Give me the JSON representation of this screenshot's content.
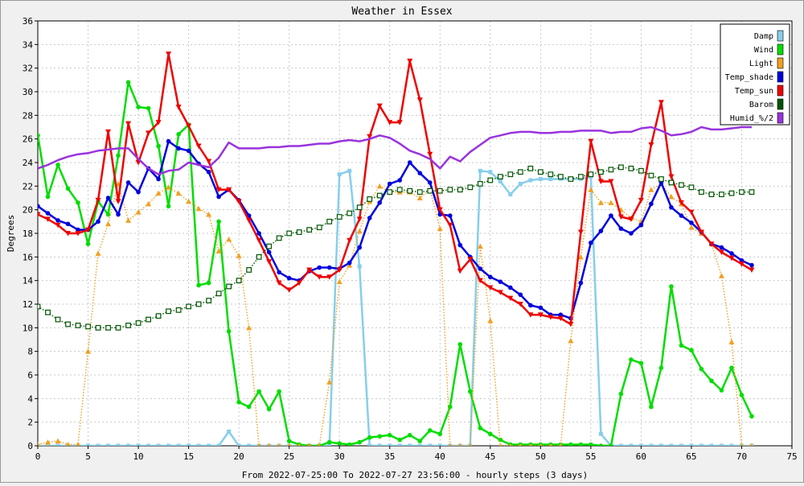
{
  "chart_data": {
    "type": "line",
    "title": "Weather in Essex",
    "xlabel": "From 2022-07-25:00 To 2022-07-27 23:56:00 - hourly steps (3 days)",
    "ylabel": "Degrees",
    "xlim": [
      0,
      75
    ],
    "ylim": [
      0,
      36
    ],
    "xticks": [
      0,
      5,
      10,
      15,
      20,
      25,
      30,
      35,
      40,
      45,
      50,
      55,
      60,
      65,
      70,
      75
    ],
    "yticks": [
      0,
      2,
      4,
      6,
      8,
      10,
      12,
      14,
      16,
      18,
      20,
      22,
      24,
      26,
      28,
      30,
      32,
      34,
      36
    ],
    "grid": true,
    "legend_position": "top-right",
    "x": [
      0,
      1,
      2,
      3,
      4,
      5,
      6,
      7,
      8,
      9,
      10,
      11,
      12,
      13,
      14,
      15,
      16,
      17,
      18,
      19,
      20,
      21,
      22,
      23,
      24,
      25,
      26,
      27,
      28,
      29,
      30,
      31,
      32,
      33,
      34,
      35,
      36,
      37,
      38,
      39,
      40,
      41,
      42,
      43,
      44,
      45,
      46,
      47,
      48,
      49,
      50,
      51,
      52,
      53,
      54,
      55,
      56,
      57,
      58,
      59,
      60,
      61,
      62,
      63,
      64,
      65,
      66,
      67,
      68,
      69,
      70,
      71
    ],
    "series": [
      {
        "name": "Damp",
        "color": "#87ceeb",
        "style": "solid",
        "marker": "square",
        "values": [
          0,
          0,
          0,
          0,
          0,
          0,
          0,
          0,
          0,
          0,
          0,
          0,
          0,
          0,
          0,
          0,
          0,
          0,
          0,
          1.2,
          0,
          0,
          0,
          0,
          0,
          0,
          0,
          0,
          0,
          0,
          23.0,
          23.3,
          15.2,
          0,
          0,
          0,
          0,
          0,
          0,
          0,
          0,
          0,
          0,
          0,
          23.3,
          23.2,
          22.4,
          21.3,
          22.2,
          22.5,
          22.6,
          22.6,
          22.6,
          22.6,
          22.6,
          22.8,
          1.0,
          0,
          0,
          0,
          0,
          0,
          0,
          0,
          0,
          0,
          0,
          0,
          0,
          0,
          0,
          0
        ]
      },
      {
        "name": "Wind",
        "color": "#00dd00",
        "style": "solid",
        "marker": "circle",
        "values": [
          26.3,
          21.1,
          23.8,
          21.8,
          20.6,
          17.1,
          20.7,
          19.6,
          24.6,
          30.8,
          28.7,
          28.6,
          25.4,
          20.3,
          26.4,
          27.2,
          13.6,
          13.8,
          19.0,
          9.7,
          3.7,
          3.3,
          4.6,
          3.1,
          4.6,
          0.4,
          0.1,
          0,
          0,
          0.3,
          0.2,
          0.1,
          0.3,
          0.7,
          0.8,
          0.9,
          0.5,
          0.9,
          0.4,
          1.3,
          1.0,
          3.3,
          8.6,
          4.6,
          1.5,
          1.0,
          0.5,
          0.1,
          0.1,
          0.1,
          0.1,
          0.1,
          0.1,
          0.1,
          0.1,
          0.1,
          0,
          0,
          4.4,
          7.3,
          7.0,
          3.3,
          6.6,
          13.5,
          8.5,
          8.1,
          6.5,
          5.5,
          4.7,
          6.6,
          4.3,
          2.5
        ]
      },
      {
        "name": "Light",
        "color": "#f0a020",
        "style": "dotted",
        "marker": "triangle-up",
        "values": [
          0.1,
          0.3,
          0.4,
          0.1,
          0.1,
          8.0,
          16.3,
          18.8,
          22.2,
          19.1,
          19.8,
          20.5,
          21.4,
          21.9,
          21.4,
          20.7,
          20.1,
          19.6,
          16.5,
          17.5,
          16.1,
          10.0,
          0,
          0,
          0,
          0,
          0,
          0,
          0,
          5.4,
          13.9,
          15.3,
          18.2,
          20.7,
          22.0,
          21.5,
          21.5,
          21.5,
          21.0,
          21.7,
          18.4,
          0,
          0,
          0,
          16.9,
          10.6,
          0,
          0,
          0,
          0,
          0,
          0,
          0,
          8.9,
          16.0,
          21.7,
          20.6,
          20.6,
          20.0,
          19.3,
          19.0,
          21.7,
          22.2,
          21.1,
          20.5,
          18.5,
          18.0,
          17.1,
          14.4,
          8.8,
          0,
          0
        ]
      },
      {
        "name": "Temp_shade",
        "color": "#0000dd",
        "style": "solid",
        "marker": "circle",
        "values": [
          20.3,
          19.7,
          19.1,
          18.8,
          18.3,
          18.3,
          19.0,
          21.0,
          19.6,
          22.3,
          21.5,
          23.5,
          22.6,
          25.8,
          25.2,
          25.0,
          23.9,
          23.2,
          21.1,
          21.7,
          20.8,
          19.5,
          18.0,
          16.4,
          14.7,
          14.2,
          14.0,
          14.8,
          15.1,
          15.1,
          15.0,
          15.5,
          16.8,
          19.3,
          20.6,
          22.2,
          22.5,
          24.0,
          23.1,
          22.3,
          19.6,
          19.5,
          17.0,
          16.0,
          15.0,
          14.3,
          13.9,
          13.4,
          12.8,
          11.9,
          11.7,
          11.1,
          11.1,
          10.8,
          13.8,
          17.2,
          18.2,
          19.5,
          18.4,
          18.0,
          18.7,
          20.5,
          22.3,
          20.2,
          19.5,
          18.9,
          18.1,
          17.1,
          16.8,
          16.3,
          15.7,
          15.3
        ]
      },
      {
        "name": "Temp_sun",
        "color": "#ee0000",
        "style": "solid",
        "marker": "triangle-down",
        "values": [
          19.6,
          19.2,
          18.7,
          18.0,
          18.0,
          18.3,
          20.8,
          26.6,
          20.7,
          27.3,
          24.0,
          26.5,
          27.4,
          33.2,
          28.7,
          27.1,
          25.4,
          24.1,
          21.7,
          21.7,
          20.7,
          19.1,
          17.4,
          15.6,
          13.8,
          13.2,
          13.8,
          14.9,
          14.3,
          14.3,
          14.9,
          17.4,
          19.2,
          26.2,
          28.8,
          27.4,
          27.4,
          32.6,
          29.3,
          24.7,
          20.0,
          18.7,
          14.8,
          15.8,
          14.0,
          13.4,
          13.0,
          12.5,
          12.0,
          11.1,
          11.1,
          10.9,
          10.8,
          10.3,
          18.1,
          25.8,
          22.4,
          22.4,
          19.4,
          19.2,
          20.8,
          25.5,
          29.1,
          22.8,
          20.6,
          19.8,
          18.1,
          17.1,
          16.4,
          15.9,
          15.4,
          14.9
        ]
      },
      {
        "name": "Barom",
        "color": "#005500",
        "style": "dotted",
        "marker": "square-open",
        "values": [
          11.8,
          11.3,
          10.7,
          10.3,
          10.2,
          10.1,
          10.0,
          10.0,
          10.0,
          10.2,
          10.4,
          10.7,
          11.0,
          11.4,
          11.5,
          11.8,
          12.0,
          12.3,
          12.9,
          13.5,
          14.0,
          14.9,
          16.0,
          16.9,
          17.6,
          18.0,
          18.1,
          18.3,
          18.5,
          19.0,
          19.4,
          19.7,
          20.2,
          20.9,
          21.2,
          21.5,
          21.7,
          21.6,
          21.5,
          21.6,
          21.6,
          21.7,
          21.7,
          21.9,
          22.2,
          22.5,
          22.8,
          23.0,
          23.2,
          23.5,
          23.2,
          23.0,
          22.8,
          22.6,
          22.8,
          23.0,
          23.2,
          23.4,
          23.6,
          23.5,
          23.3,
          22.9,
          22.6,
          22.3,
          22.1,
          21.9,
          21.5,
          21.3,
          21.3,
          21.4,
          21.5,
          21.5
        ]
      },
      {
        "name": "Humid_%/2",
        "color": "#9933dd",
        "style": "solid",
        "marker": "none",
        "values": [
          23.5,
          23.8,
          24.2,
          24.5,
          24.7,
          24.8,
          25.0,
          25.1,
          25.2,
          25.2,
          24.3,
          23.5,
          23.0,
          23.3,
          23.4,
          24.0,
          23.8,
          23.6,
          24.4,
          25.7,
          25.2,
          25.2,
          25.2,
          25.3,
          25.3,
          25.4,
          25.4,
          25.5,
          25.6,
          25.6,
          25.8,
          25.9,
          25.8,
          26.0,
          26.3,
          26.1,
          25.6,
          25.0,
          24.7,
          24.3,
          23.5,
          24.5,
          24.1,
          24.9,
          25.5,
          26.1,
          26.3,
          26.5,
          26.6,
          26.6,
          26.5,
          26.5,
          26.6,
          26.6,
          26.7,
          26.7,
          26.7,
          26.5,
          26.6,
          26.6,
          26.9,
          27.0,
          26.7,
          26.3,
          26.4,
          26.6,
          27.0,
          26.8,
          26.8,
          26.9,
          27.0,
          27.0
        ]
      }
    ]
  }
}
